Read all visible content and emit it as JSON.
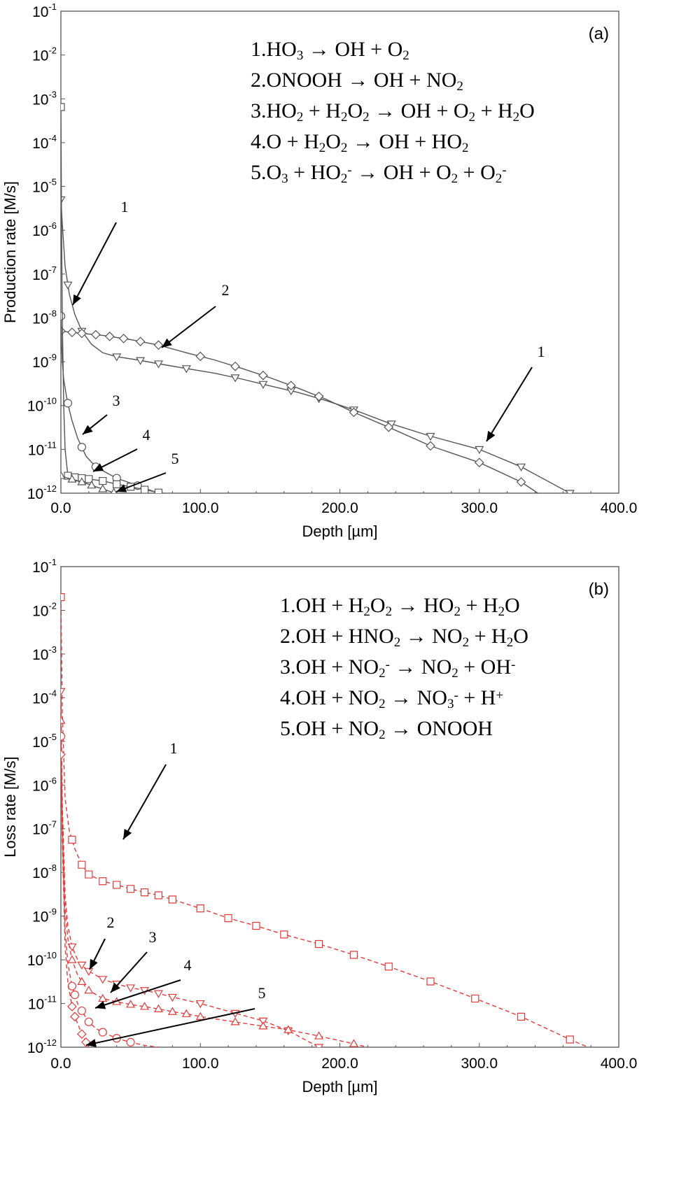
{
  "chart_data": [
    {
      "type": "line",
      "panel_label": "(a)",
      "ylabel": "Production rate [M/s]",
      "xlabel": "Depth [µm]",
      "xlim": [
        0,
        400
      ],
      "ylim": [
        1e-12,
        0.1
      ],
      "yscale": "log",
      "xticks": [
        "0.0",
        "100.0",
        "200.0",
        "300.0",
        "400.0"
      ],
      "ytick_exponents": [
        "-12",
        "-11",
        "-10",
        "-9",
        "-8",
        "-7",
        "-6",
        "-5",
        "-4",
        "-3",
        "-2",
        "-1"
      ],
      "ytick_base": "10",
      "line_color": "#555555",
      "line_style": "solid",
      "reactions": [
        "1.HO₃ → OH + O₂",
        "2.ONOOH → OH + NO₂",
        "3.HO₂ + H₂O₂ → OH + O₂ + H₂O",
        "4.O + H₂O₂ → OH + HO₂",
        "5.O₃ + HO₂⁻ → OH + O₂ + O₂⁻"
      ],
      "series": [
        {
          "id": "1",
          "marker": "triangle-down",
          "x": [
            0,
            1,
            3,
            6,
            10,
            15,
            22,
            30,
            40,
            55,
            70,
            90,
            110,
            130,
            150,
            170,
            190,
            210,
            235,
            265,
            300,
            330,
            365
          ],
          "y": [
            5e-06,
            1.4e-06,
            1.5e-07,
            3.5e-08,
            1.2e-08,
            5e-09,
            2.5e-09,
            1.6e-09,
            1.3e-09,
            1.1e-09,
            9e-10,
            7e-10,
            5.5e-10,
            4e-10,
            2.8e-10,
            2e-10,
            1.3e-10,
            8e-11,
            4e-11,
            2e-11,
            1e-11,
            4e-12,
            1e-12
          ],
          "marker_x": [
            0,
            5,
            15,
            40,
            57,
            70,
            90,
            125,
            145,
            165,
            185,
            210,
            237,
            265,
            300,
            330,
            365
          ]
        },
        {
          "id": "2",
          "marker": "diamond",
          "x": [
            0,
            10,
            30,
            50,
            70,
            90,
            110,
            130,
            150,
            170,
            190,
            210,
            235,
            265,
            300,
            330,
            342
          ],
          "y": [
            5e-09,
            4.6e-09,
            4e-09,
            3.2e-09,
            2.4e-09,
            1.6e-09,
            1.1e-09,
            7e-10,
            4.3e-10,
            2.5e-10,
            1.4e-10,
            7e-11,
            3.2e-11,
            1.2e-11,
            5e-12,
            1.8e-12,
            1e-12
          ],
          "marker_x": [
            0,
            8,
            15,
            25,
            35,
            45,
            57,
            70,
            100,
            125,
            145,
            165,
            185,
            210,
            235,
            265,
            300,
            330
          ]
        },
        {
          "id": "3",
          "marker": "circle",
          "x": [
            0,
            0.5,
            1,
            2,
            4,
            6,
            8,
            12,
            18,
            25,
            32,
            40,
            50,
            60,
            70
          ],
          "y": [
            1.1e-08,
            2.5e-09,
            1e-09,
            4e-10,
            1.6e-10,
            8e-11,
            4.5e-11,
            1.8e-11,
            7e-12,
            4e-12,
            3e-12,
            2.2e-12,
            1.7e-12,
            1.3e-12,
            1e-12
          ],
          "marker_x": [
            0,
            5,
            15,
            25,
            40,
            55,
            70
          ]
        },
        {
          "id": "4",
          "marker": "square",
          "x": [
            0,
            0.5,
            1,
            2,
            3,
            5,
            10,
            20,
            30,
            40,
            50,
            60,
            72
          ],
          "y": [
            0.00065,
            1e-06,
            1e-08,
            1e-10,
            1e-11,
            2.5e-12,
            2.3e-12,
            2.1e-12,
            1.9e-12,
            1.6e-12,
            1.4e-12,
            1.2e-12,
            1e-12
          ],
          "marker_x": [
            0,
            5,
            10,
            15,
            20,
            30,
            40,
            50,
            60,
            70
          ]
        },
        {
          "id": "5",
          "marker": "triangle-up",
          "x": [
            0,
            5,
            10,
            15,
            20,
            25,
            30,
            35,
            40
          ],
          "y": [
            2.5e-12,
            2.2e-12,
            2e-12,
            1.8e-12,
            1.6e-12,
            1.4e-12,
            1.25e-12,
            1.1e-12,
            1e-12
          ],
          "marker_x": [
            0,
            8,
            15,
            22,
            30,
            38
          ]
        }
      ]
    },
    {
      "type": "line",
      "panel_label": "(b)",
      "ylabel": "Loss rate [M/s]",
      "xlabel": "Depth [µm]",
      "xlim": [
        0,
        400
      ],
      "ylim": [
        1e-12,
        0.1
      ],
      "yscale": "log",
      "xticks": [
        "0.0",
        "100.0",
        "200.0",
        "300.0",
        "400.0"
      ],
      "ytick_exponents": [
        "-12",
        "-11",
        "-10",
        "-9",
        "-8",
        "-7",
        "-6",
        "-5",
        "-4",
        "-3",
        "-2",
        "-1"
      ],
      "ytick_base": "10",
      "line_color": "#e23b3b",
      "line_style": "dashed",
      "reactions": [
        "1.OH + H₂O₂ → HO₂ + H₂O",
        "2.OH + HNO₂ → NO₂ + H₂O",
        "3.OH + NO₂⁻ → NO₂ + OH⁻",
        "4.OH + NO₂ → NO₃⁻ + H⁺",
        "5.OH + NO₂ → ONOOH"
      ],
      "series": [
        {
          "id": "1",
          "marker": "square",
          "x": [
            0,
            1,
            3,
            6,
            10,
            15,
            20,
            30,
            40,
            50,
            60,
            70,
            80,
            100,
            120,
            140,
            160,
            185,
            210,
            235,
            265,
            297,
            330,
            365,
            378
          ],
          "y": [
            0.02,
            5e-05,
            5e-07,
            9e-08,
            3.5e-08,
            1.5e-08,
            9e-09,
            6.3e-09,
            5.2e-09,
            4.2e-09,
            3.5e-09,
            3e-09,
            2.4e-09,
            1.5e-09,
            9e-10,
            6e-10,
            3.8e-10,
            2.3e-10,
            1.3e-10,
            7e-11,
            3.2e-11,
            1.3e-11,
            5e-12,
            1.5e-12,
            1e-12
          ],
          "marker_x": [
            0,
            8,
            15,
            20,
            30,
            40,
            50,
            60,
            70,
            80,
            100,
            120,
            140,
            160,
            185,
            210,
            235,
            265,
            297,
            330,
            365
          ]
        },
        {
          "id": "2",
          "marker": "triangle-down",
          "x": [
            0,
            1,
            3,
            5,
            8,
            12,
            16,
            20,
            30,
            40,
            50,
            60,
            70,
            80,
            100,
            125,
            145,
            163,
            185
          ],
          "y": [
            0.00014,
            4e-07,
            3e-09,
            6e-10,
            2e-10,
            1e-10,
            7e-11,
            5.5e-11,
            3.6e-11,
            2.8e-11,
            2.3e-11,
            2e-11,
            1.7e-11,
            1.4e-11,
            1e-11,
            6e-12,
            4e-12,
            2.4e-12,
            1e-12
          ],
          "marker_x": [
            0,
            8,
            15,
            20,
            30,
            40,
            50,
            60,
            70,
            80,
            100,
            125,
            145,
            163,
            185
          ]
        },
        {
          "id": "3",
          "marker": "triangle-up",
          "x": [
            0,
            1,
            3,
            5,
            8,
            12,
            16,
            20,
            30,
            40,
            50,
            60,
            70,
            80,
            90,
            100,
            120,
            140,
            163,
            185,
            210,
            220
          ],
          "y": [
            3e-05,
            2e-07,
            1.5e-09,
            3e-10,
            1e-10,
            4.5e-11,
            2.8e-11,
            2e-11,
            1.3e-11,
            1.1e-11,
            9.5e-12,
            8.5e-12,
            7.5e-12,
            6.5e-12,
            5.8e-12,
            5e-12,
            4e-12,
            3.2e-12,
            2.5e-12,
            1.8e-12,
            1.2e-12,
            1e-12
          ],
          "marker_x": [
            0,
            8,
            15,
            20,
            30,
            40,
            50,
            60,
            70,
            80,
            90,
            100,
            125,
            145,
            163,
            185,
            210
          ]
        },
        {
          "id": "4",
          "marker": "circle",
          "x": [
            0,
            1,
            3,
            5,
            8,
            12,
            16,
            20,
            25,
            30,
            40,
            50,
            60,
            70
          ],
          "y": [
            1.3e-05,
            1e-07,
            5e-10,
            8e-11,
            2.5e-11,
            1e-11,
            6e-12,
            3.8e-12,
            2.7e-12,
            2.2e-12,
            1.6e-12,
            1.3e-12,
            1.1e-12,
            1e-12
          ],
          "marker_x": [
            0,
            8,
            10,
            15,
            20,
            30,
            40,
            50
          ]
        },
        {
          "id": "5",
          "marker": "diamond",
          "x": [
            0,
            1,
            3,
            5,
            8,
            10,
            12,
            15,
            18,
            20
          ],
          "y": [
            5e-06,
            5e-08,
            2e-10,
            3e-11,
            8.5e-12,
            5e-12,
            3.5e-12,
            2e-12,
            1.3e-12,
            1e-12
          ],
          "marker_x": [
            0,
            8,
            10,
            15,
            18
          ]
        }
      ]
    }
  ],
  "annotations_a": [
    "1",
    "2",
    "1",
    "3",
    "4",
    "5"
  ],
  "annotations_b": [
    "1",
    "2",
    "3",
    "4",
    "5"
  ]
}
